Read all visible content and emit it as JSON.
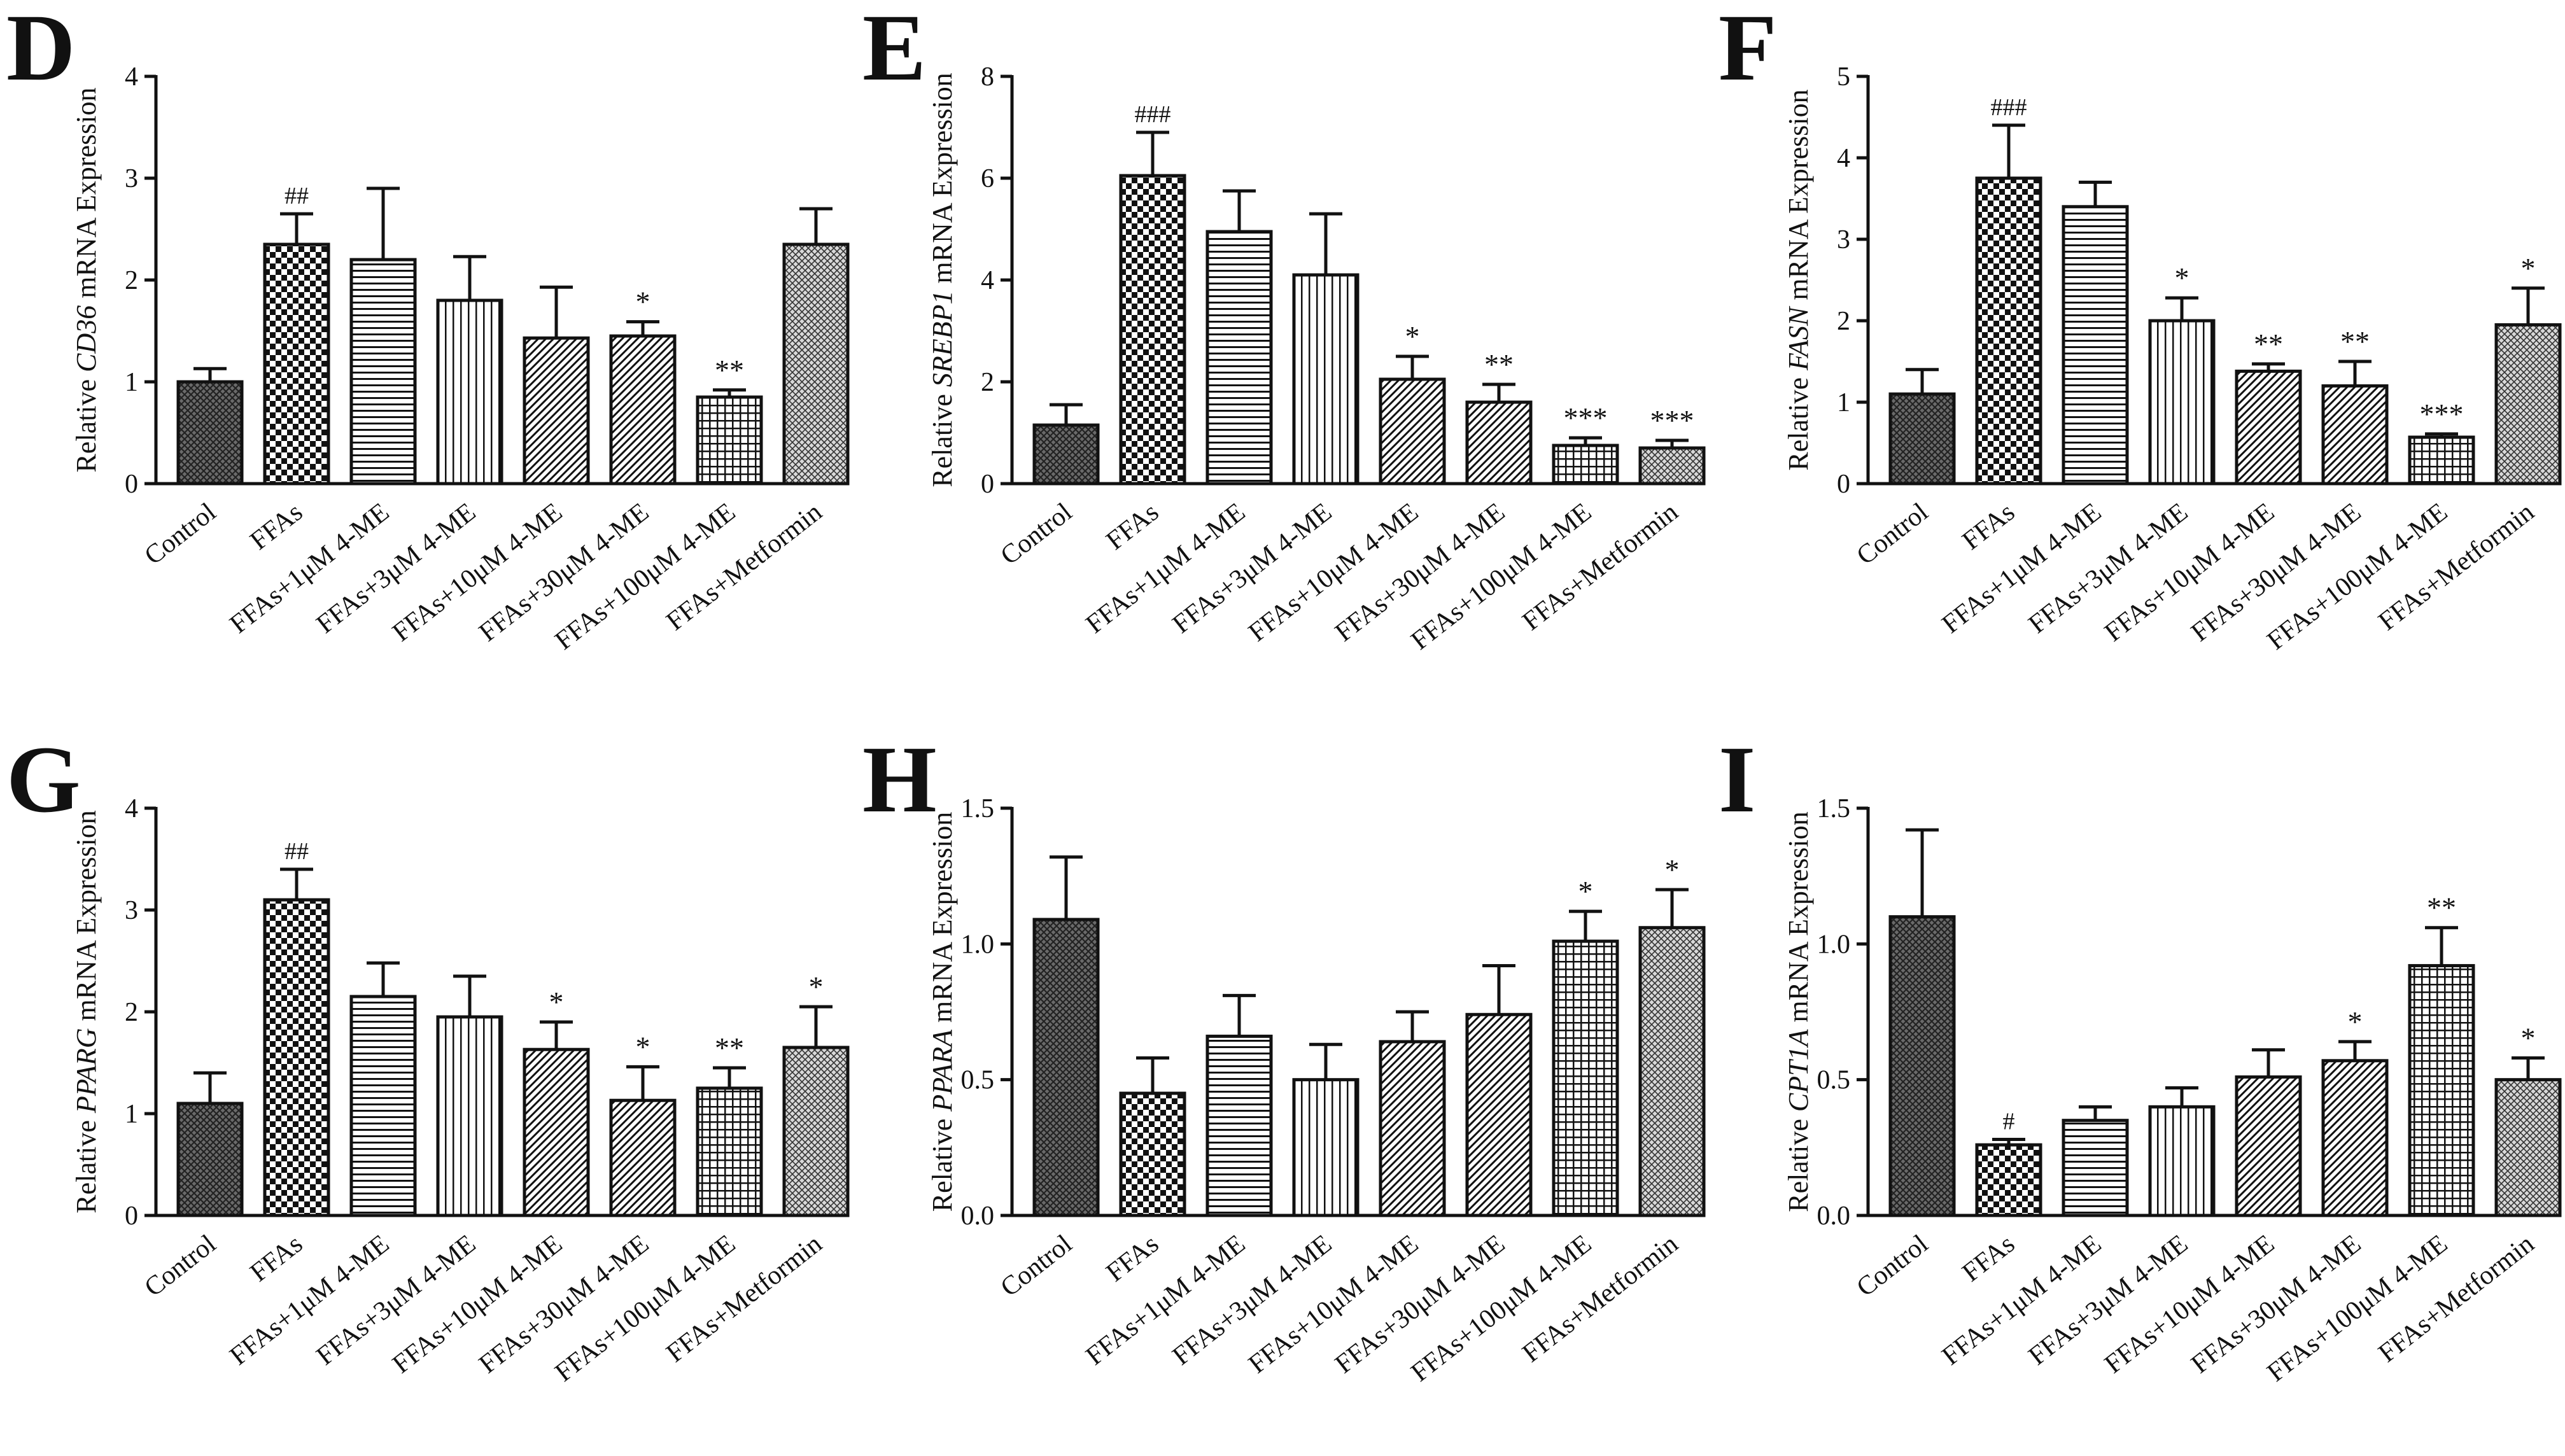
{
  "chart_data": [
    {
      "id": "D",
      "type": "bar",
      "gene": "CD36",
      "ylabel_pre": "Relative ",
      "ylabel_post": " mRNA Expression",
      "ylim": [
        0,
        4
      ],
      "yticks": [
        "0",
        "1",
        "2",
        "3",
        "4"
      ],
      "ytick_values": [
        0,
        1,
        2,
        3,
        4
      ],
      "categories": [
        "Control",
        "FFAs",
        "FFAs+1μM 4-ME",
        "FFAs+3μM 4-ME",
        "FFAs+10μM 4-ME",
        "FFAs+30μM 4-ME",
        "FFAs+100μM 4-ME",
        "FFAs+Metformin"
      ],
      "values": [
        1.0,
        2.35,
        2.2,
        1.8,
        1.43,
        1.45,
        0.85,
        2.35
      ],
      "errors": [
        0.13,
        0.3,
        0.7,
        0.43,
        0.5,
        0.14,
        0.07,
        0.35
      ],
      "annotations": [
        "",
        "##",
        "",
        "",
        "",
        "*",
        "**",
        ""
      ],
      "patterns": [
        "cross",
        "check",
        "hlines",
        "vlines",
        "diag",
        "diag",
        "grid",
        "dotcross"
      ]
    },
    {
      "id": "E",
      "type": "bar",
      "gene": "SREBP1",
      "ylabel_pre": "Relative ",
      "ylabel_post": " mRNA Expression",
      "ylim": [
        0,
        8
      ],
      "yticks": [
        "0",
        "2",
        "4",
        "6",
        "8"
      ],
      "ytick_values": [
        0,
        2,
        4,
        6,
        8
      ],
      "categories": [
        "Control",
        "FFAs",
        "FFAs+1μM 4-ME",
        "FFAs+3μM 4-ME",
        "FFAs+10μM 4-ME",
        "FFAs+30μM 4-ME",
        "FFAs+100μM 4-ME",
        "FFAs+Metformin"
      ],
      "values": [
        1.15,
        6.05,
        4.95,
        4.1,
        2.05,
        1.6,
        0.75,
        0.7
      ],
      "errors": [
        0.4,
        0.85,
        0.8,
        1.2,
        0.45,
        0.35,
        0.15,
        0.15
      ],
      "annotations": [
        "",
        "###",
        "",
        "",
        "*",
        "**",
        "***",
        "***"
      ],
      "patterns": [
        "cross",
        "check",
        "hlines",
        "vlines",
        "diag",
        "diag",
        "grid",
        "dotcross"
      ]
    },
    {
      "id": "F",
      "type": "bar",
      "gene": "FASN",
      "ylabel_pre": "Relative ",
      "ylabel_post": " mRNA Expression",
      "ylim": [
        0,
        5
      ],
      "yticks": [
        "0",
        "1",
        "2",
        "3",
        "4",
        "5"
      ],
      "ytick_values": [
        0,
        1,
        2,
        3,
        4,
        5
      ],
      "categories": [
        "Control",
        "FFAs",
        "FFAs+1μM 4-ME",
        "FFAs+3μM 4-ME",
        "FFAs+10μM 4-ME",
        "FFAs+30μM 4-ME",
        "FFAs+100μM 4-ME",
        "FFAs+Metformin"
      ],
      "values": [
        1.1,
        3.75,
        3.4,
        2.0,
        1.38,
        1.2,
        0.57,
        1.95
      ],
      "errors": [
        0.3,
        0.65,
        0.3,
        0.28,
        0.09,
        0.3,
        0.04,
        0.45
      ],
      "annotations": [
        "",
        "###",
        "",
        "*",
        "**",
        "**",
        "***",
        "*"
      ],
      "patterns": [
        "cross",
        "check",
        "hlines",
        "vlines",
        "diag",
        "diag",
        "grid",
        "dotcross"
      ]
    },
    {
      "id": "G",
      "type": "bar",
      "gene": "PPARG",
      "ylabel_pre": "Relative ",
      "ylabel_post": " mRNA Expression",
      "ylim": [
        0,
        4
      ],
      "yticks": [
        "0",
        "1",
        "2",
        "3",
        "4"
      ],
      "ytick_values": [
        0,
        1,
        2,
        3,
        4
      ],
      "categories": [
        "Control",
        "FFAs",
        "FFAs+1μM 4-ME",
        "FFAs+3μM 4-ME",
        "FFAs+10μM 4-ME",
        "FFAs+30μM 4-ME",
        "FFAs+100μM 4-ME",
        "FFAs+Metformin"
      ],
      "values": [
        1.1,
        3.1,
        2.15,
        1.95,
        1.63,
        1.13,
        1.25,
        1.65
      ],
      "errors": [
        0.3,
        0.3,
        0.33,
        0.4,
        0.27,
        0.33,
        0.2,
        0.4
      ],
      "annotations": [
        "",
        "##",
        "",
        "",
        "*",
        "*",
        "**",
        "*"
      ],
      "patterns": [
        "cross",
        "check",
        "hlines",
        "vlines",
        "diag",
        "diag",
        "grid",
        "dotcross"
      ]
    },
    {
      "id": "H",
      "type": "bar",
      "gene": "PPARA",
      "ylabel_pre": "Relative ",
      "ylabel_post": " mRNA Expression",
      "ylim": [
        0,
        1.5
      ],
      "yticks": [
        "0.0",
        "0.5",
        "1.0",
        "1.5"
      ],
      "ytick_values": [
        0,
        0.5,
        1.0,
        1.5
      ],
      "categories": [
        "Control",
        "FFAs",
        "FFAs+1μM 4-ME",
        "FFAs+3μM 4-ME",
        "FFAs+10μM 4-ME",
        "FFAs+30μM 4-ME",
        "FFAs+100μM 4-ME",
        "FFAs+Metformin"
      ],
      "values": [
        1.09,
        0.45,
        0.66,
        0.5,
        0.64,
        0.74,
        1.01,
        1.06
      ],
      "errors": [
        0.23,
        0.13,
        0.15,
        0.13,
        0.11,
        0.18,
        0.11,
        0.14
      ],
      "annotations": [
        "",
        "",
        "",
        "",
        "",
        "",
        "*",
        "*"
      ],
      "patterns": [
        "cross",
        "check",
        "hlines",
        "vlines",
        "diag",
        "diag",
        "grid",
        "dotcross"
      ]
    },
    {
      "id": "I",
      "type": "bar",
      "gene": "CPT1A",
      "ylabel_pre": "Relative ",
      "ylabel_post": " mRNA Expression",
      "ylim": [
        0,
        1.5
      ],
      "yticks": [
        "0.0",
        "0.5",
        "1.0",
        "1.5"
      ],
      "ytick_values": [
        0,
        0.5,
        1.0,
        1.5
      ],
      "categories": [
        "Control",
        "FFAs",
        "FFAs+1μM 4-ME",
        "FFAs+3μM 4-ME",
        "FFAs+10μM 4-ME",
        "FFAs+30μM 4-ME",
        "FFAs+100μM 4-ME",
        "FFAs+Metformin"
      ],
      "values": [
        1.1,
        0.26,
        0.35,
        0.4,
        0.51,
        0.57,
        0.92,
        0.5
      ],
      "errors": [
        0.32,
        0.02,
        0.05,
        0.07,
        0.1,
        0.07,
        0.14,
        0.08
      ],
      "annotations": [
        "",
        "#",
        "",
        "",
        "",
        "*",
        "**",
        "*"
      ],
      "patterns": [
        "cross",
        "check",
        "hlines",
        "vlines",
        "diag",
        "diag",
        "grid",
        "dotcross"
      ]
    }
  ]
}
